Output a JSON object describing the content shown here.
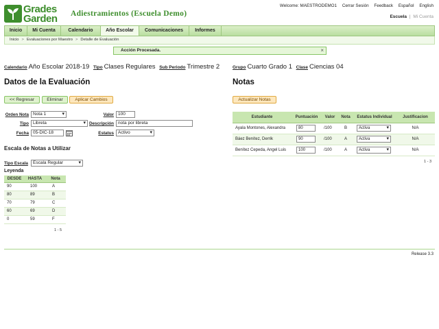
{
  "logo": {
    "line1": "Grades",
    "line2": "Garden"
  },
  "app_title": "Adiestramientos (Escuela Demo)",
  "topnav": [
    "Welcome: MAESTRODEMO1",
    "Cerrar Sesión",
    "Feedback",
    "Español",
    "English"
  ],
  "scope_nav": {
    "active": "Escuela",
    "separator": "|",
    "other": "Mi Cuenta"
  },
  "mainnav": [
    {
      "label": "Inicio"
    },
    {
      "label": "Mi Cuenta"
    },
    {
      "label": "Calendario"
    },
    {
      "label": "Año Escolar"
    },
    {
      "label": "Comunicaciones"
    },
    {
      "label": "Informes"
    }
  ],
  "breadcrumb": [
    "Inicio",
    "Evaluaciones por Maestro",
    "Detalle de Evaluación"
  ],
  "breadcrumb_sep": ">",
  "message": {
    "text": "Acción Procesada.",
    "close": "×"
  },
  "context": {
    "calendario_label": "Calendario",
    "calendario": "Año Escolar 2018-19",
    "tipo_label": "Tipo",
    "tipo": "Clases Regulares",
    "subperiodo_label": "Sub Periodo",
    "subperiodo": "Trimestre 2",
    "grupo_label": "Grupo",
    "grupo": "Cuarto Grado 1",
    "clase_label": "Clase",
    "clase": "Ciencias 04"
  },
  "evaluation": {
    "title": "Datos de la Evaluación",
    "buttons": {
      "back": "<< Regresar",
      "delete": "Eliminar",
      "apply": "Aplicar Cambios"
    },
    "fields": {
      "orden_label": "Orden Nota",
      "orden": "Nota 1",
      "valor_label": "Valor",
      "valor": "100",
      "tipo_label": "Tipo",
      "tipo": "Libreta",
      "descripcion_label": "Descripción",
      "descripcion": "nota por libreta",
      "fecha_label": "Fecha",
      "fecha": "05-DIC-18",
      "estatus_label": "Estatus",
      "estatus": "Activo"
    }
  },
  "scale": {
    "title": "Escala de Notas a Utilizar",
    "tipo_label": "Tipo Escala",
    "tipo": "Escala Regular",
    "legend_title": "Leyenda",
    "headers": [
      "DESDE",
      "HASTA",
      "Nota"
    ],
    "rows": [
      [
        "90",
        "100",
        "A"
      ],
      [
        "80",
        "89",
        "B"
      ],
      [
        "70",
        "79",
        "C"
      ],
      [
        "60",
        "69",
        "D"
      ],
      [
        "0",
        "59",
        "F"
      ]
    ],
    "pager": "1 - 5"
  },
  "grades": {
    "title": "Notas",
    "update_button": "Actualizar Notas",
    "headers": [
      "Estudiante",
      "Puntuación",
      "Valor",
      "Nota",
      "Estatus Individual",
      "Justificacion"
    ],
    "rows": [
      {
        "student": "Ayala Montones, Alexandra",
        "score": "80",
        "valor": "/100",
        "nota": "B",
        "status": "Activa",
        "just": "N/A"
      },
      {
        "student": "Báez Benítez, Derrik",
        "score": "90",
        "valor": "/100",
        "nota": "A",
        "status": "Activa",
        "just": "N/A"
      },
      {
        "student": "Benítez Cepeda, Angel Luis",
        "score": "100",
        "valor": "/100",
        "nota": "A",
        "status": "Activa",
        "just": "N/A"
      }
    ],
    "pager": "1 - 3"
  },
  "footer": {
    "release": "Release 3.3"
  },
  "colors": {
    "brand_green": "#3e8e2d",
    "nav_green": "#b9dea0",
    "button_orange": "#fde7bd"
  }
}
